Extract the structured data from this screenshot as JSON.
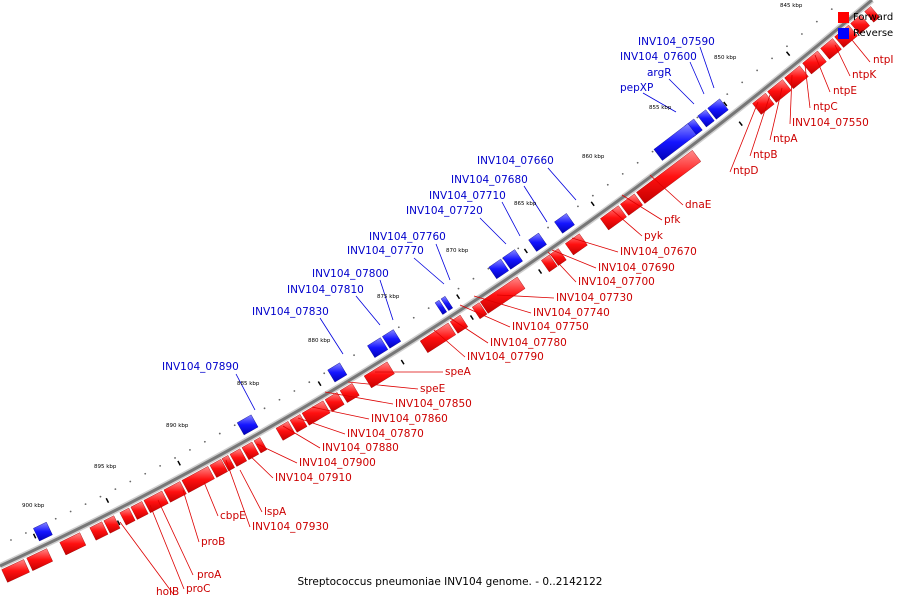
{
  "caption": "Streptococcus pneumoniae INV104 genome. - 0..2142122",
  "legend": [
    {
      "label": "Forward",
      "color": "#ff0000"
    },
    {
      "label": "Reverse",
      "color": "#0000ff"
    }
  ],
  "colors": {
    "forward": "#ff0000",
    "forward_label": "#cc0000",
    "reverse": "#0000ff",
    "reverse_label": "#0000cc",
    "backbone": "#888888"
  },
  "ticks": [
    "845 kbp",
    "850 kbp",
    "855 kbp",
    "860 kbp",
    "865 kbp",
    "870 kbp",
    "875 kbp",
    "880 kbp",
    "885 kbp",
    "890 kbp",
    "895 kbp",
    "900 kbp"
  ],
  "forward_labels": [
    "ntpI",
    "ntpK",
    "ntpE",
    "ntpC",
    "INV104_07550",
    "ntpA",
    "ntpB",
    "ntpD",
    "dnaE",
    "pfk",
    "pyk",
    "INV104_07670",
    "INV104_07690",
    "INV104_07700",
    "INV104_07730",
    "INV104_07740",
    "INV104_07750",
    "INV104_07780",
    "INV104_07790",
    "speA",
    "speE",
    "INV104_07850",
    "INV104_07860",
    "INV104_07870",
    "INV104_07880",
    "INV104_07900",
    "INV104_07910",
    "lspA",
    "INV104_07930",
    "cbpE",
    "proB",
    "proA",
    "proC",
    "holB"
  ],
  "reverse_labels": [
    "INV104_07590",
    "INV104_07600",
    "argR",
    "pepXP",
    "INV104_07660",
    "INV104_07680",
    "INV104_07710",
    "INV104_07720",
    "INV104_07760",
    "INV104_07770",
    "INV104_07800",
    "INV104_07810",
    "INV104_07830",
    "INV104_07890"
  ]
}
